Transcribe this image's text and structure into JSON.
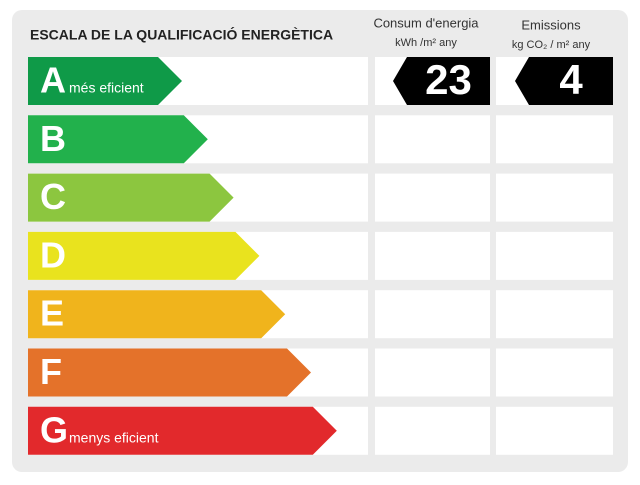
{
  "title": "ESCALA DE LA QUALIFICACIÓ ENERGÈTICA",
  "consumption": {
    "title": "Consum d'energia",
    "unit": "kWh /m² any",
    "value": 23
  },
  "emissions": {
    "title": "Emissions",
    "unit": "kg CO₂ / m² any",
    "value": 4
  },
  "rows": [
    {
      "letter": "A",
      "label": "més eficient",
      "color": "#0f9a48"
    },
    {
      "letter": "B",
      "color": "#22b14c"
    },
    {
      "letter": "C",
      "color": "#8cc63f"
    },
    {
      "letter": "D",
      "color": "#e9e31e"
    },
    {
      "letter": "E",
      "color": "#f0b41c"
    },
    {
      "letter": "F",
      "color": "#e4722a"
    },
    {
      "letter": "G",
      "label": "menys eficient",
      "color": "#e2292c"
    }
  ]
}
